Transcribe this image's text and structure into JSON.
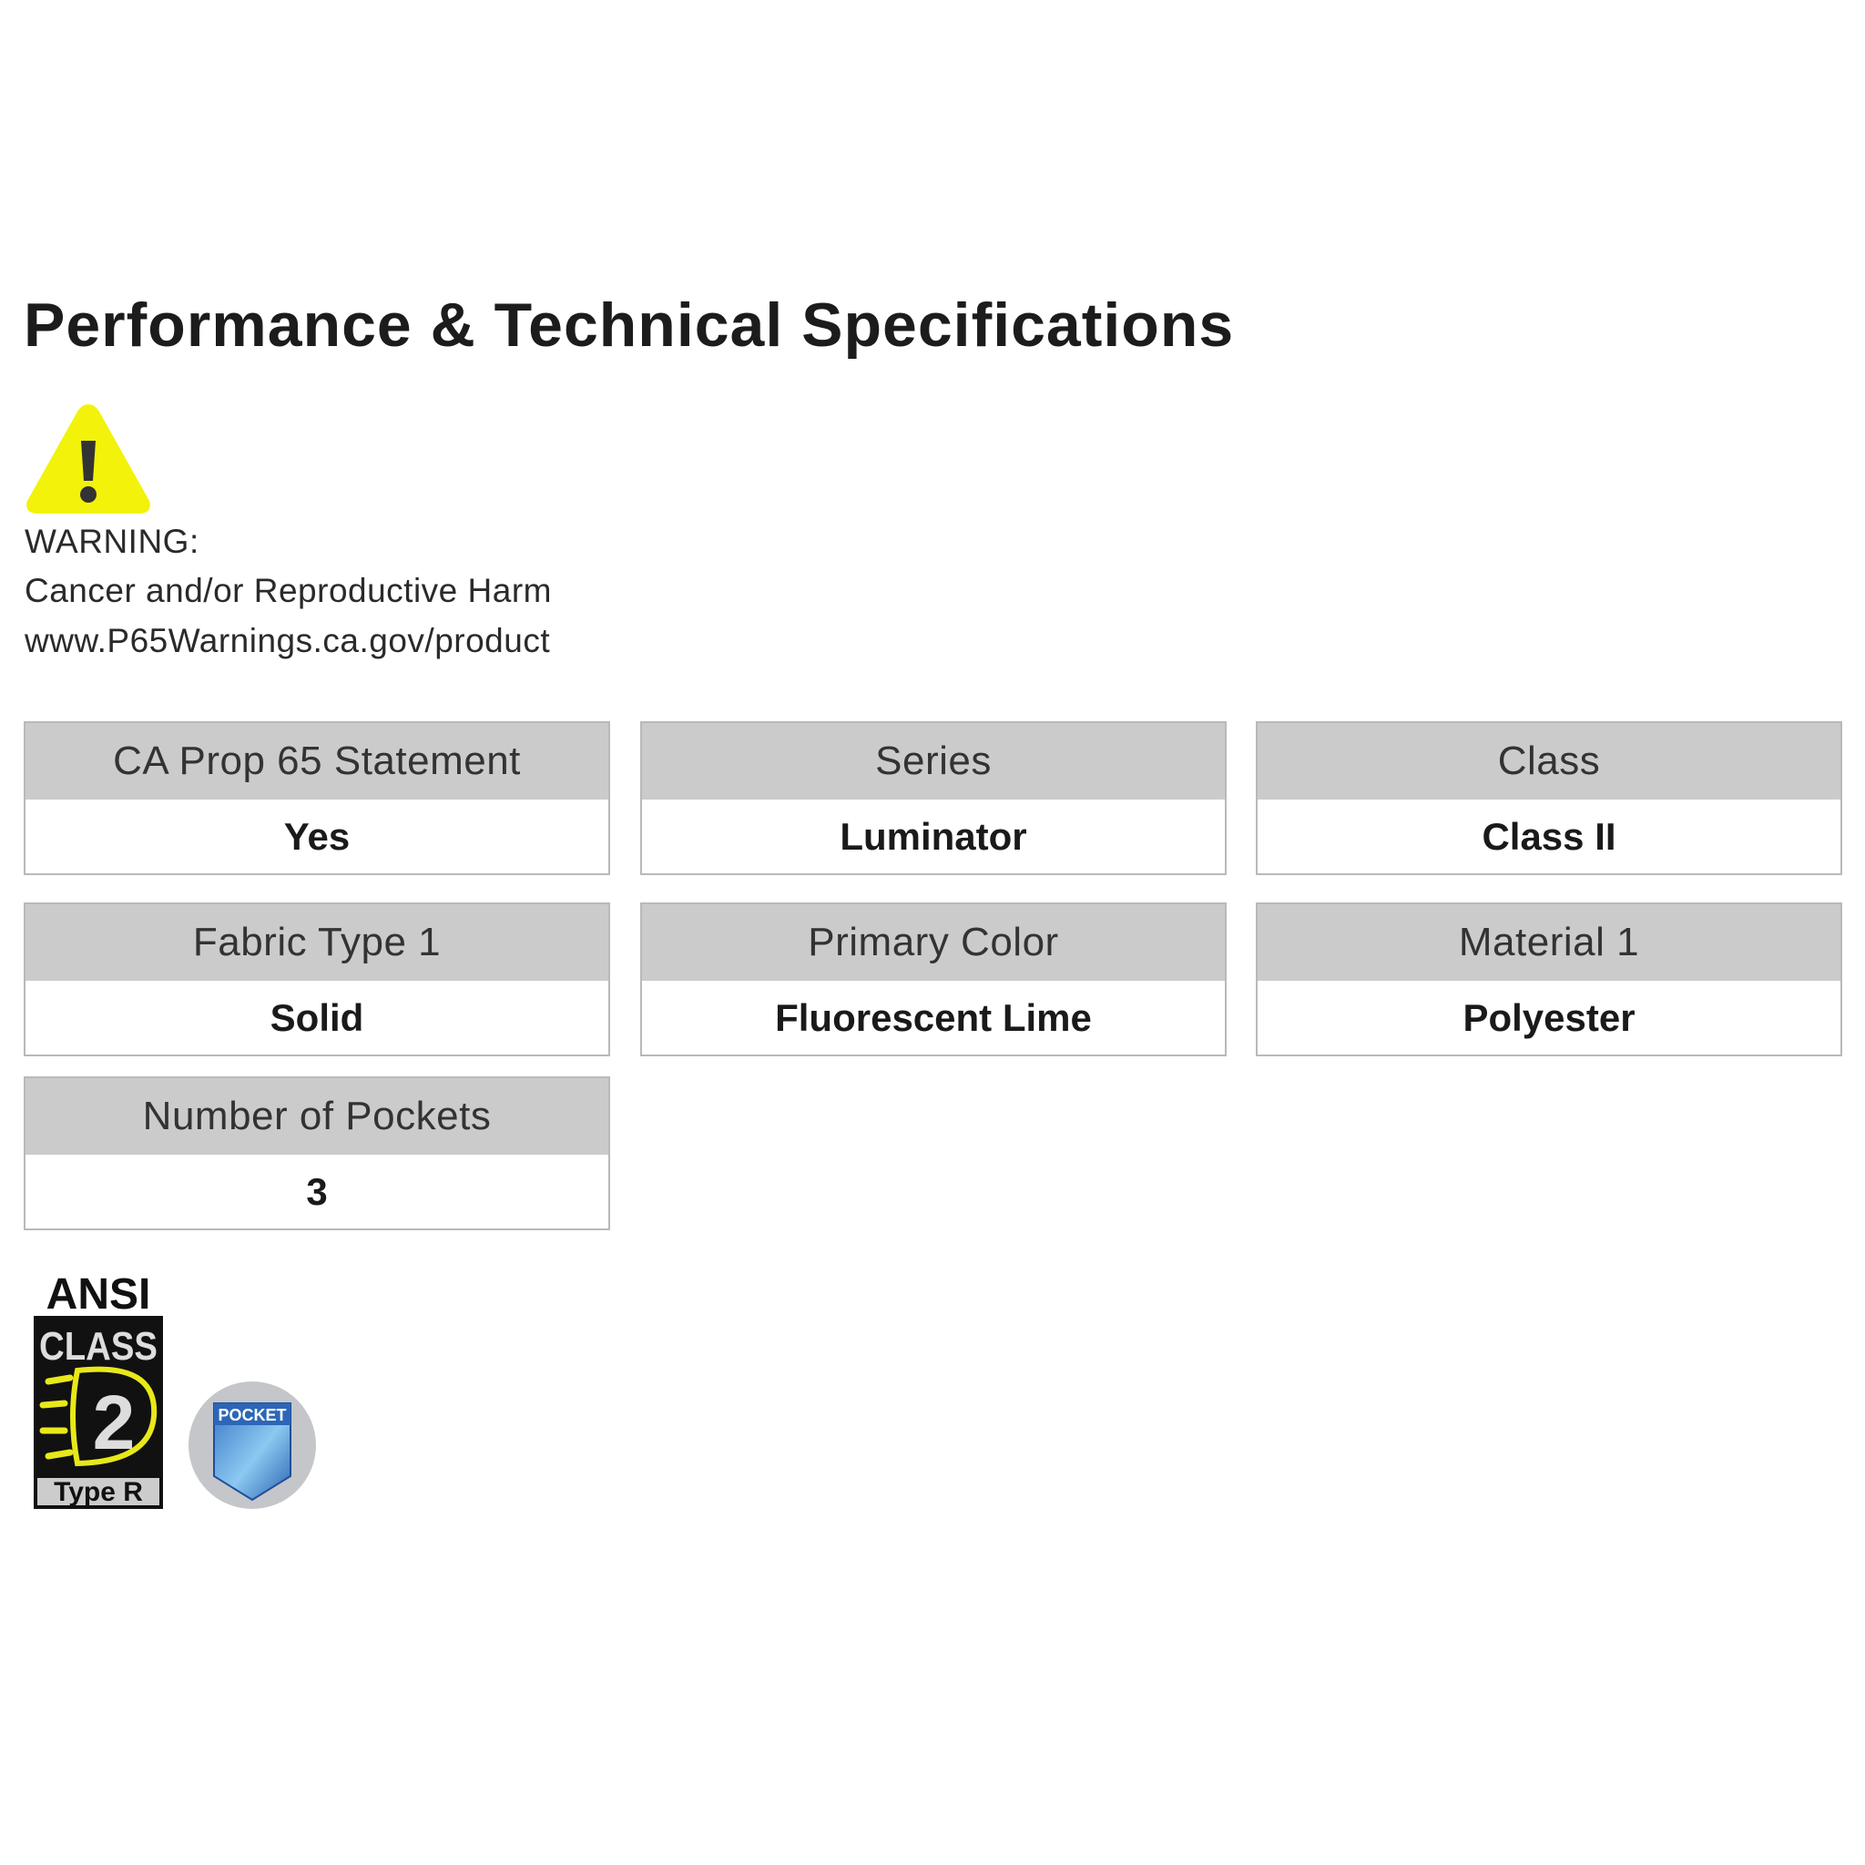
{
  "title": "Performance & Technical Specifications",
  "warning": {
    "icon": "warning-triangle-icon",
    "icon_color": "#f2f20a",
    "label": "WARNING:",
    "message": "Cancer and/or Reproductive Harm",
    "url": "www.P65Warnings.ca.gov/product"
  },
  "specs": [
    {
      "label": "CA Prop 65 Statement",
      "value": "Yes"
    },
    {
      "label": "Series",
      "value": "Luminator"
    },
    {
      "label": "Class",
      "value": "Class II"
    },
    {
      "label": "Fabric Type 1",
      "value": "Solid"
    },
    {
      "label": "Primary Color",
      "value": "Fluorescent Lime"
    },
    {
      "label": "Material 1",
      "value": "Polyester"
    },
    {
      "label": "Number of Pockets",
      "value": "3"
    }
  ],
  "badges": {
    "ansi": {
      "line1": "ANSI",
      "line2": "CLASS",
      "number": "2",
      "type": "Type R"
    },
    "pocket": {
      "label": "POCKET"
    }
  }
}
